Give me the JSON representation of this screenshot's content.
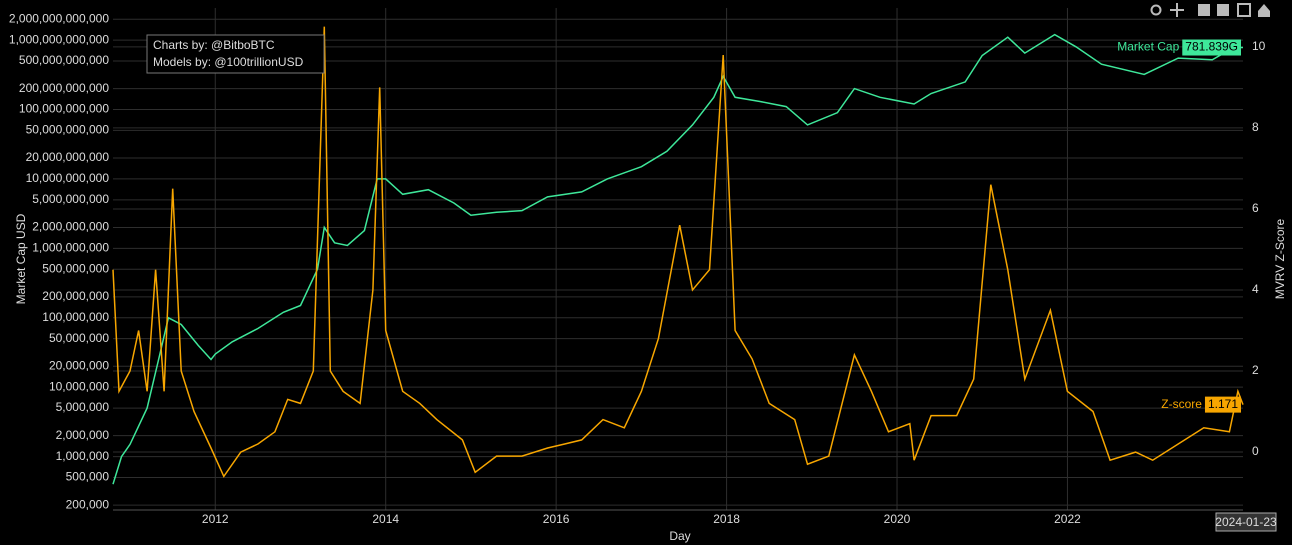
{
  "chart_data": {
    "type": "line",
    "x_label": "Day",
    "y_label": "Market Cap USD",
    "y2_label": "MVRV Z-Score",
    "annotation": [
      "Charts by: @BitboBTC",
      "Models by: @100trillionUSD"
    ],
    "hover_x_label": "2024-01-23",
    "log_y": true,
    "grid": true,
    "xlim": [
      2010.8,
      2024.06
    ],
    "xticks": [
      2012,
      2014,
      2016,
      2018,
      2020,
      2022
    ],
    "ylim": [
      170000,
      2900000000000
    ],
    "yticks": [
      {
        "value": 200000,
        "label": "200,000"
      },
      {
        "value": 500000,
        "label": "500,000"
      },
      {
        "value": 1000000,
        "label": "1,000,000"
      },
      {
        "value": 2000000,
        "label": "2,000,000"
      },
      {
        "value": 5000000,
        "label": "5,000,000"
      },
      {
        "value": 10000000,
        "label": "10,000,000"
      },
      {
        "value": 20000000,
        "label": "20,000,000"
      },
      {
        "value": 50000000,
        "label": "50,000,000"
      },
      {
        "value": 100000000,
        "label": "100,000,000"
      },
      {
        "value": 200000000,
        "label": "200,000,000"
      },
      {
        "value": 500000000,
        "label": "500,000,000"
      },
      {
        "value": 1000000000,
        "label": "1,000,000,000"
      },
      {
        "value": 2000000000,
        "label": "2,000,000,000"
      },
      {
        "value": 5000000000,
        "label": "5,000,000,000"
      },
      {
        "value": 10000000000,
        "label": "10,000,000,000"
      },
      {
        "value": 20000000000,
        "label": "20,000,000,000"
      },
      {
        "value": 50000000000,
        "label": "50,000,000,000"
      },
      {
        "value": 100000000000,
        "label": "100,000,000,000"
      },
      {
        "value": 200000000000,
        "label": "200,000,000,000"
      },
      {
        "value": 500000000000,
        "label": "500,000,000,000"
      },
      {
        "value": 1000000000000,
        "label": "1,000,000,000,000"
      },
      {
        "value": 2000000000000,
        "label": "2,000,000,000,000"
      }
    ],
    "y2lim": [
      -1.43,
      10.96
    ],
    "y2ticks": [
      0,
      2,
      4,
      6,
      8,
      10
    ],
    "series": [
      {
        "name": "Market Cap",
        "color": "#3ee79a",
        "x": [
          2010.8,
          2010.9,
          2011.0,
          2011.2,
          2011.35,
          2011.45,
          2011.6,
          2011.8,
          2011.95,
          2012.0,
          2012.2,
          2012.5,
          2012.8,
          2013.0,
          2013.2,
          2013.28,
          2013.4,
          2013.55,
          2013.75,
          2013.9,
          2014.0,
          2014.2,
          2014.5,
          2014.8,
          2015.0,
          2015.3,
          2015.6,
          2015.9,
          2016.3,
          2016.6,
          2017.0,
          2017.3,
          2017.6,
          2017.85,
          2017.96,
          2018.1,
          2018.4,
          2018.7,
          2018.95,
          2019.3,
          2019.5,
          2019.8,
          2020.2,
          2020.4,
          2020.8,
          2021.0,
          2021.3,
          2021.5,
          2021.85,
          2022.1,
          2022.4,
          2022.9,
          2023.3,
          2023.7,
          2023.95,
          2024.06
        ],
        "values": [
          400000,
          1000000,
          1500000,
          5000000,
          30000000,
          100000000,
          80000000,
          40000000,
          25000000,
          30000000,
          45000000,
          70000000,
          120000000,
          150000000,
          500000000,
          2000000000,
          1200000000,
          1100000000,
          1800000000,
          10000000000,
          10000000000,
          6000000000,
          7000000000,
          4500000000,
          3000000000,
          3300000000,
          3500000000,
          5500000000,
          6500000000,
          10000000000,
          15000000000,
          25000000000,
          60000000000,
          150000000000,
          300000000000,
          150000000000,
          130000000000,
          110000000000,
          60000000000,
          90000000000,
          200000000000,
          150000000000,
          120000000000,
          170000000000,
          250000000000,
          600000000000,
          1100000000000,
          650000000000,
          1200000000000,
          800000000000,
          450000000000,
          320000000000,
          550000000000,
          520000000000,
          780000000000,
          781839000000
        ],
        "value_labels": [
          null,
          null,
          null,
          null,
          null,
          null,
          null,
          null,
          null,
          null,
          null,
          null,
          null,
          null,
          null,
          null,
          null,
          null,
          null,
          null,
          null,
          null,
          null,
          null,
          null,
          null,
          null,
          null,
          null,
          null,
          null,
          null,
          null,
          null,
          null,
          null,
          null,
          null,
          null,
          null,
          null,
          null,
          null,
          null,
          null,
          null,
          null,
          null,
          null,
          null,
          null,
          null,
          null,
          null,
          null,
          "781.839G"
        ]
      },
      {
        "name": "Z-score",
        "color": "#f7a600",
        "axis": "y2",
        "x": [
          2010.8,
          2010.87,
          2011.0,
          2011.1,
          2011.2,
          2011.3,
          2011.4,
          2011.5,
          2011.6,
          2011.75,
          2011.95,
          2012.1,
          2012.3,
          2012.5,
          2012.7,
          2012.85,
          2013.0,
          2013.15,
          2013.28,
          2013.35,
          2013.5,
          2013.7,
          2013.85,
          2013.93,
          2014.0,
          2014.2,
          2014.4,
          2014.6,
          2014.9,
          2015.05,
          2015.3,
          2015.6,
          2015.9,
          2016.1,
          2016.3,
          2016.55,
          2016.8,
          2017.0,
          2017.2,
          2017.45,
          2017.6,
          2017.8,
          2017.96,
          2018.1,
          2018.3,
          2018.5,
          2018.8,
          2018.95,
          2019.2,
          2019.5,
          2019.7,
          2019.9,
          2020.15,
          2020.2,
          2020.4,
          2020.7,
          2020.9,
          2021.1,
          2021.3,
          2021.5,
          2021.8,
          2022.0,
          2022.3,
          2022.5,
          2022.8,
          2023.0,
          2023.3,
          2023.6,
          2023.9,
          2024.0,
          2024.06
        ],
        "values": [
          4.5,
          1.5,
          2,
          3,
          1.5,
          4.5,
          1.5,
          6.5,
          2,
          1,
          0.1,
          -0.6,
          0,
          0.2,
          0.5,
          1.3,
          1.2,
          2,
          10.5,
          2,
          1.5,
          1.2,
          4,
          9,
          3,
          1.5,
          1.2,
          0.8,
          0.3,
          -0.5,
          -0.1,
          -0.1,
          0.1,
          0.2,
          0.3,
          0.8,
          0.6,
          1.5,
          2.8,
          5.6,
          4,
          4.5,
          9.8,
          3,
          2.3,
          1.2,
          0.8,
          -0.3,
          -0.1,
          2.4,
          1.5,
          0.5,
          0.7,
          -0.2,
          0.9,
          0.9,
          1.8,
          6.6,
          4.5,
          1.8,
          3.5,
          1.5,
          1,
          -0.2,
          0,
          -0.2,
          0.2,
          0.6,
          0.5,
          1.5,
          1.171
        ]
      }
    ]
  }
}
